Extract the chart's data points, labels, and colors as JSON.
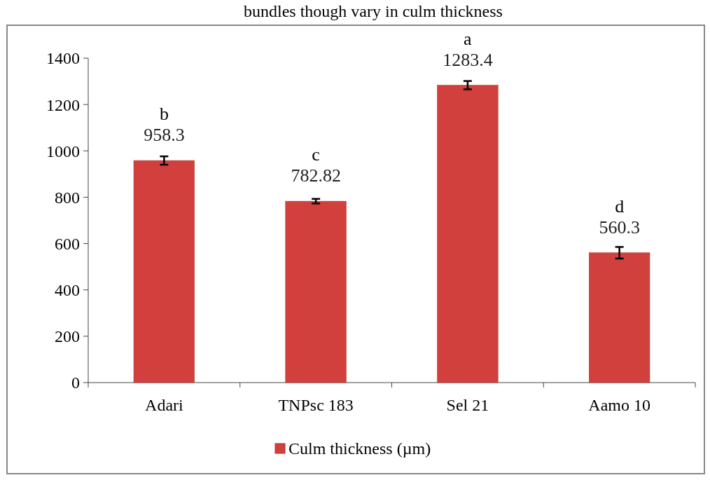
{
  "chart_data": {
    "type": "bar",
    "categories": [
      "Adari",
      "TNPsc 183",
      "Sel 21",
      "Aamo 10"
    ],
    "series": [
      {
        "name": "Culm thickness (µm)",
        "color": "#d2403d",
        "values": [
          958.3,
          782.82,
          1283.4,
          560.3
        ],
        "errors": [
          18,
          10,
          18,
          25
        ]
      }
    ],
    "data_labels": true,
    "ylim": [
      0,
      1400
    ],
    "yticks": [
      0,
      200,
      400,
      600,
      800,
      1000,
      1200,
      1400
    ],
    "legend": "bottom",
    "annotations": [
      "bundles though vary in culm thickness",
      {
        "text": "b",
        "x": "Adari",
        "y": 958.3
      },
      {
        "text": "c",
        "x": "TNPsc 183",
        "y": 782.82
      },
      {
        "text": "a",
        "x": "Sel 21",
        "y": 1283.4
      },
      {
        "text": "d",
        "x": "Aamo 10",
        "y": 560.3
      }
    ]
  }
}
